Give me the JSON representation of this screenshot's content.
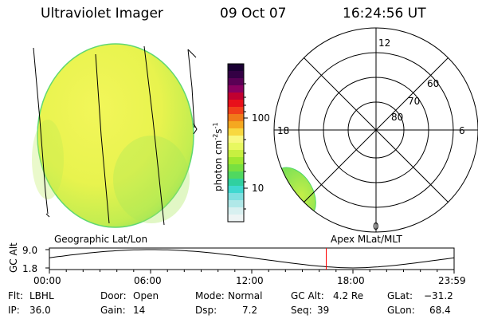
{
  "header": {
    "title": "Ultraviolet Imager",
    "date": "09 Oct 07",
    "time": "16:24:56 UT"
  },
  "colorbar": {
    "label": "photon cm",
    "label_sup1": "-2",
    "label_mid": "s",
    "label_sup2": "-1",
    "tick_labels": [
      "100",
      "10"
    ],
    "colors": [
      "#1a0033",
      "#330044",
      "#5a0055",
      "#8a0060",
      "#c00030",
      "#e8101a",
      "#f0401a",
      "#f07a1a",
      "#f5a820",
      "#f8d840",
      "#f8f880",
      "#e8f860",
      "#c8f040",
      "#a0e830",
      "#78e040",
      "#50d860",
      "#30d0a0",
      "#40d8d0",
      "#80e0e0",
      "#b0e8e8",
      "#d8f0f0",
      "#eef4f4"
    ]
  },
  "polar": {
    "rings": [
      "80",
      "70",
      "60"
    ],
    "mlt": {
      "top": "12",
      "left": "18",
      "right": "6",
      "bottom": "0"
    }
  },
  "geo_label": "Geographic Lat/Lon",
  "apex_label": "Apex MLat/MLT",
  "plot": {
    "ylabel": "GC Alt",
    "yticks": [
      "9.0",
      "1.8"
    ],
    "xticks": [
      "00:00",
      "06:00",
      "12:00",
      "18:00",
      "23:59"
    ],
    "current_marker_hours": 16.416,
    "marker_color": "#ff0000"
  },
  "info": {
    "flt_label": "Flt:",
    "flt_value": "LBHL",
    "ip_label": "IP:",
    "ip_value": "36.0",
    "door_label": "Door:",
    "door_value": "Open",
    "gain_label": "Gain:",
    "gain_value": "14",
    "mode_label": "Mode:",
    "mode_value": "Normal",
    "dsp_label": "Dsp:",
    "dsp_value": "7.2",
    "gcalt_label": "GC Alt:",
    "gcalt_value": "4.2 Re",
    "seq_label": "Seq:",
    "seq_value": "39",
    "glat_label": "GLat:",
    "glat_value": "−31.2",
    "glon_label": "GLon:",
    "glon_value": "68.4"
  },
  "colors": {
    "disk_fill": "#ecf552",
    "disk_edge": "#7fe063",
    "disk_shade": "#a9ea56",
    "blob_fill": "#b6ec4e",
    "blob_edge": "#4fd868"
  }
}
